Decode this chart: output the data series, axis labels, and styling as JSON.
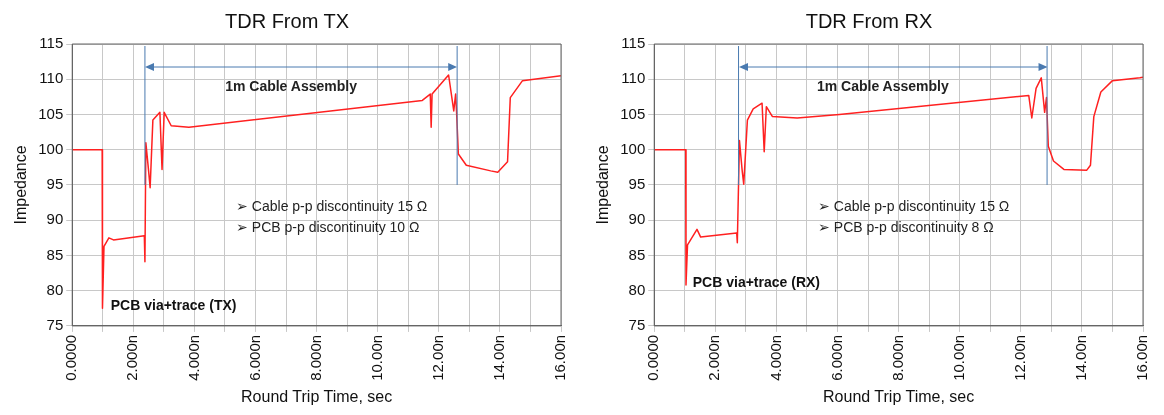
{
  "chart_data": [
    {
      "type": "line",
      "title": "TDR From TX",
      "xlabel": "Round Trip Time, sec",
      "ylabel": "Impedance",
      "xlim": [
        0,
        16
      ],
      "ylim": [
        75,
        115
      ],
      "xticks": [
        {
          "value": 0,
          "label": "0.0000"
        },
        {
          "value": 1,
          "label": null
        },
        {
          "value": 2,
          "label": "2.000n"
        },
        {
          "value": 3,
          "label": null
        },
        {
          "value": 4,
          "label": "4.000n"
        },
        {
          "value": 5,
          "label": null
        },
        {
          "value": 6,
          "label": "6.000n"
        },
        {
          "value": 7,
          "label": null
        },
        {
          "value": 8,
          "label": "8.000n"
        },
        {
          "value": 9,
          "label": null
        },
        {
          "value": 10,
          "label": "10.00n"
        },
        {
          "value": 11,
          "label": null
        },
        {
          "value": 12,
          "label": "12.00n"
        },
        {
          "value": 13,
          "label": null
        },
        {
          "value": 14,
          "label": "14.00n"
        },
        {
          "value": 15,
          "label": null
        },
        {
          "value": 16,
          "label": "16.00n"
        }
      ],
      "yticks": [
        75,
        80,
        85,
        90,
        95,
        100,
        105,
        110,
        115
      ],
      "grid": true,
      "marker": "none",
      "line_style": "solid",
      "series": [
        {
          "color": "#ff2020",
          "x": [
            0,
            0.98,
            0.99,
            1.04,
            1.2,
            1.35,
            2.36,
            2.38,
            2.41,
            2.5,
            2.55,
            2.64,
            2.87,
            2.94,
            3.01,
            3.24,
            3.82,
            11.46,
            11.72,
            11.75,
            11.78,
            12.32,
            12.49,
            12.55,
            12.58,
            12.64,
            12.9,
            13.7,
            13.93,
            14.25,
            14.34,
            14.74,
            16
          ],
          "values": [
            100,
            100,
            77.5,
            86.3,
            87.5,
            87.2,
            87.8,
            84.1,
            101,
            97,
            94.6,
            104.2,
            105.3,
            97.2,
            105.3,
            103.4,
            103.2,
            107,
            107.9,
            103.2,
            107.9,
            110.6,
            105.5,
            107.9,
            105.5,
            99.4,
            97.8,
            97,
            96.8,
            98.3,
            107.4,
            109.8,
            110.5
          ]
        }
      ],
      "ref_lines": [
        {
          "axis": "x",
          "value": 2.38,
          "color": "#4a7ab0"
        },
        {
          "axis": "x",
          "value": 12.6,
          "color": "#4a7ab0"
        }
      ],
      "annotations": [
        "1m Cable Assembly",
        "➢ Cable p-p discontinuity 15 Ω",
        "➢ PCB p-p discontinuity 10 Ω",
        {
          "text": "PCB via+trace (TX)",
          "x": 1.0,
          "y": 77.5
        }
      ]
    },
    {
      "type": "line",
      "title": "TDR From RX",
      "xlabel": "Round Trip Time, sec",
      "ylabel": "Impedance",
      "xlim": [
        0,
        16
      ],
      "ylim": [
        75,
        115
      ],
      "xticks": [
        {
          "value": 0,
          "label": "0.0000"
        },
        {
          "value": 1,
          "label": null
        },
        {
          "value": 2,
          "label": "2.000n"
        },
        {
          "value": 3,
          "label": null
        },
        {
          "value": 4,
          "label": "4.000n"
        },
        {
          "value": 5,
          "label": null
        },
        {
          "value": 6,
          "label": "6.000n"
        },
        {
          "value": 7,
          "label": null
        },
        {
          "value": 8,
          "label": "8.000n"
        },
        {
          "value": 9,
          "label": null
        },
        {
          "value": 10,
          "label": "10.00n"
        },
        {
          "value": 11,
          "label": null
        },
        {
          "value": 12,
          "label": "12.00n"
        },
        {
          "value": 13,
          "label": null
        },
        {
          "value": 14,
          "label": "14.00n"
        },
        {
          "value": 15,
          "label": null
        },
        {
          "value": 16,
          "label": "16.00n"
        }
      ],
      "yticks": [
        75,
        80,
        85,
        90,
        95,
        100,
        105,
        110,
        115
      ],
      "grid": true,
      "marker": "none",
      "line_style": "solid",
      "series": [
        {
          "color": "#ff2020",
          "x": [
            0,
            1.03,
            1.04,
            1.09,
            1.4,
            1.52,
            2.7,
            2.72,
            2.79,
            2.88,
            2.93,
            3.05,
            3.24,
            3.53,
            3.6,
            3.67,
            3.87,
            4.68,
            6.06,
            12.26,
            12.36,
            12.5,
            12.67,
            12.78,
            12.84,
            12.9,
            13.07,
            13.41,
            14.16,
            14.28,
            14.39,
            14.62,
            15.0,
            15.9,
            16
          ],
          "values": [
            100,
            100,
            80.8,
            86.5,
            88.7,
            87.6,
            88.2,
            86.8,
            101.3,
            97,
            95.1,
            104.2,
            105.8,
            106.6,
            99.7,
            106.1,
            104.7,
            104.5,
            105,
            107.7,
            104.5,
            108.7,
            110.2,
            105.3,
            107.4,
            100.5,
            98.4,
            97.2,
            97.1,
            97.8,
            104.7,
            108.2,
            109.8,
            110.2,
            110.3
          ]
        }
      ],
      "ref_lines": [
        {
          "axis": "x",
          "value": 2.76,
          "color": "#4a7ab0"
        },
        {
          "axis": "x",
          "value": 12.86,
          "color": "#4a7ab0"
        }
      ],
      "annotations": [
        "1m Cable Assembly",
        "➢ Cable p-p discontinuity 15 Ω",
        "➢ PCB p-p discontinuity 8 Ω",
        {
          "text": "PCB via+trace (RX)",
          "x": 1.0,
          "y": 80.8
        }
      ]
    }
  ]
}
